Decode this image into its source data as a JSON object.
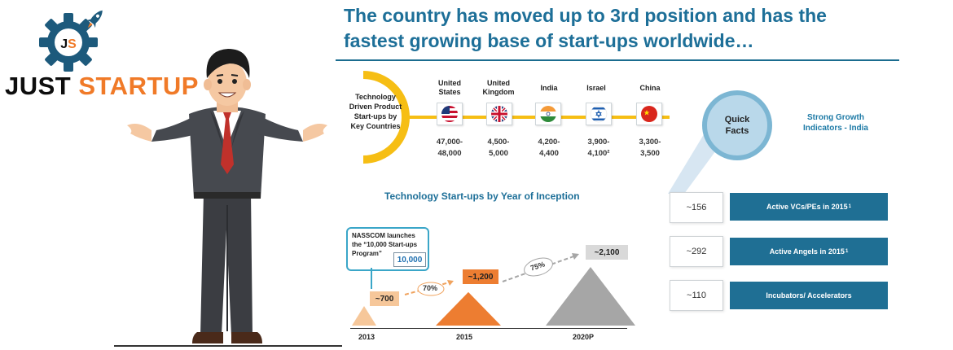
{
  "logo": {
    "initials": "JS",
    "word1": "JUST",
    "word2": "STARTUP",
    "colors": {
      "dark": "#0d0d0d",
      "accent": "#f07a28",
      "gear": "#1d5a7c"
    }
  },
  "headline": {
    "line1": "The country has moved up to 3rd position and has the",
    "line2": "fastest growing base of start-ups worldwide…"
  },
  "countries_panel": {
    "label": [
      "Technology",
      "Driven Product",
      "Start-ups by",
      "Key Countries"
    ],
    "countries": [
      {
        "name": [
          "United",
          "States"
        ],
        "value": [
          "47,000-",
          "48,000"
        ],
        "flag": "us-flag-icon"
      },
      {
        "name": [
          "United",
          "Kingdom"
        ],
        "value": [
          "4,500-",
          "5,000"
        ],
        "flag": "uk-flag-icon"
      },
      {
        "name": [
          "India"
        ],
        "value": [
          "4,200-",
          "4,400"
        ],
        "flag": "india-flag-icon"
      },
      {
        "name": [
          "Israel"
        ],
        "value": [
          "3,900-",
          "4,100²"
        ],
        "flag": "israel-flag-icon"
      },
      {
        "name": [
          "China"
        ],
        "value": [
          "3,300-",
          "3,500"
        ],
        "flag": "china-flag-icon"
      }
    ]
  },
  "quick_facts": {
    "circle": [
      "Quick",
      "Facts"
    ],
    "title": [
      "Strong Growth",
      "Indicators - India"
    ],
    "items": [
      {
        "value": "~156",
        "label": "Active VCs/PEs in 2015",
        "sup": "1"
      },
      {
        "value": "~292",
        "label": "Active Angels in 2015",
        "sup": "1"
      },
      {
        "value": "~110",
        "label": "Incubators/ Accelerators",
        "sup": ""
      }
    ]
  },
  "inception": {
    "title": "Technology Start-ups by Year of Inception",
    "callout": [
      "NASSCOM launches",
      "the “10,000 Start-ups",
      "Program”"
    ],
    "badge": "10,000",
    "years": [
      "2013",
      "2015",
      "2020P"
    ],
    "values": [
      "~700",
      "~1,200",
      "~2,100"
    ],
    "growth": [
      "70%",
      "75%"
    ],
    "colors": {
      "y2013": "#f6c79a",
      "y2015": "#ed7d31",
      "y2020": "#a6a6a6",
      "label2013": "#f6c79a",
      "label2015": "#ed7d31",
      "label2020": "#d9d9d9"
    }
  }
}
